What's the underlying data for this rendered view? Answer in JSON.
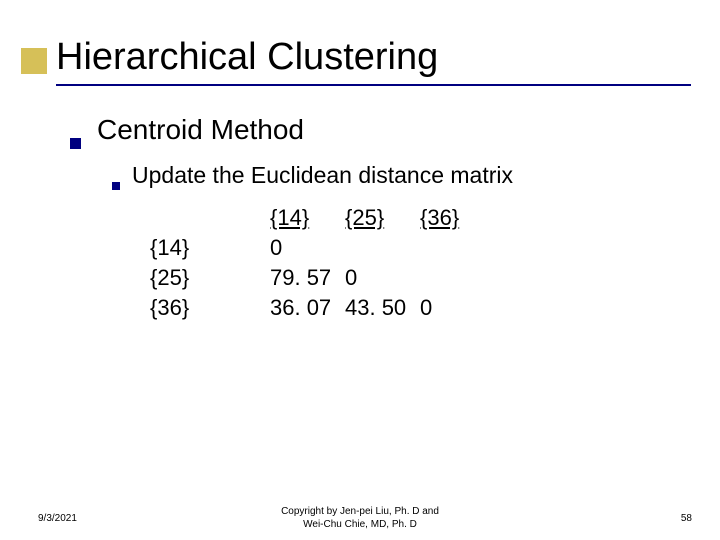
{
  "accent_color": "#000080",
  "title_bar_color": "#cfb53b",
  "title": "Hierarchical Clustering",
  "level1": "Centroid Method",
  "level2": "Update the Euclidean distance matrix",
  "matrix": {
    "row_labels": [
      "{14}",
      "{25}",
      "{36}"
    ],
    "col_labels": [
      "{14}",
      "{25}",
      "{36}"
    ],
    "cells": {
      "r0c0": "0",
      "r1c0": "79. 57",
      "r1c1": "0",
      "r2c0": "36. 07",
      "r2c1": "43. 50",
      "r2c2": "0"
    }
  },
  "footer": {
    "date": "9/3/2021",
    "copyright_line1": "Copyright by Jen-pei Liu, Ph. D and",
    "copyright_line2": "Wei-Chu Chie, MD, Ph. D",
    "page": "58"
  }
}
